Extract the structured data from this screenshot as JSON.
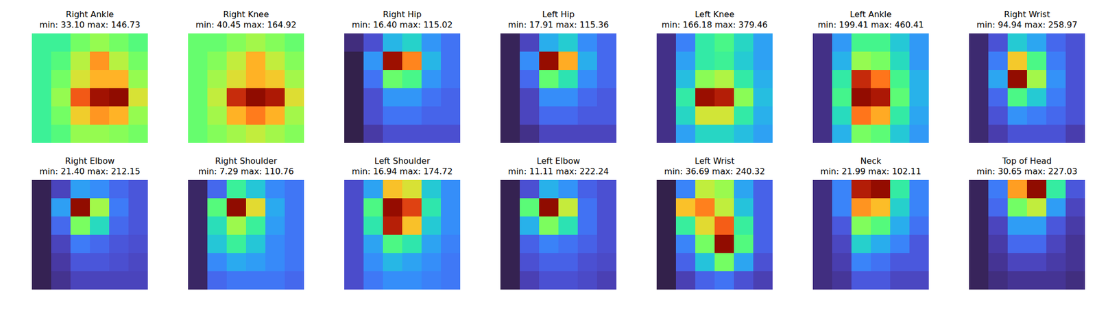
{
  "chart_data": [
    {
      "type": "heatmap",
      "title": "Right Ankle",
      "subtitle": "min: 33.10 max: 146.73",
      "min": 33.1,
      "max": 146.73,
      "tick_labels": false,
      "cells": [
        [
          75,
          75,
          85,
          90,
          85,
          80
        ],
        [
          75,
          80,
          95,
          115,
          95,
          85
        ],
        [
          75,
          85,
          100,
          110,
          110,
          90
        ],
        [
          75,
          90,
          125,
          140,
          146,
          100
        ],
        [
          75,
          85,
          105,
          115,
          110,
          90
        ],
        [
          75,
          80,
          90,
          90,
          88,
          85
        ]
      ]
    },
    {
      "type": "heatmap",
      "title": "Right Knee",
      "subtitle": "min: 40.45 max: 164.92",
      "min": 40.45,
      "max": 164.92,
      "tick_labels": false,
      "cells": [
        [
          95,
          95,
          100,
          105,
          100,
          95
        ],
        [
          95,
          100,
          110,
          125,
          110,
          100
        ],
        [
          95,
          105,
          115,
          125,
          120,
          105
        ],
        [
          95,
          110,
          150,
          164,
          155,
          115
        ],
        [
          95,
          105,
          125,
          135,
          125,
          105
        ],
        [
          95,
          100,
          105,
          110,
          105,
          100
        ]
      ]
    },
    {
      "type": "heatmap",
      "title": "Right Hip",
      "subtitle": "min: 16.40 max: 115.02",
      "min": 16.4,
      "max": 115.02,
      "tick_labels": false,
      "cells": [
        [
          20,
          25,
          40,
          45,
          35,
          30
        ],
        [
          18,
          35,
          110,
          90,
          40,
          30
        ],
        [
          18,
          30,
          60,
          55,
          35,
          30
        ],
        [
          18,
          25,
          35,
          35,
          30,
          28
        ],
        [
          18,
          25,
          30,
          30,
          28,
          28
        ],
        [
          18,
          22,
          25,
          25,
          25,
          25
        ]
      ]
    },
    {
      "type": "heatmap",
      "title": "Left Hip",
      "subtitle": "min: 17.91 max: 115.36",
      "min": 17.91,
      "max": 115.36,
      "tick_labels": false,
      "cells": [
        [
          20,
          25,
          40,
          45,
          35,
          30
        ],
        [
          20,
          35,
          112,
          85,
          40,
          30
        ],
        [
          20,
          30,
          60,
          50,
          35,
          30
        ],
        [
          20,
          25,
          35,
          35,
          30,
          28
        ],
        [
          20,
          25,
          30,
          30,
          28,
          28
        ],
        [
          20,
          22,
          25,
          25,
          25,
          25
        ]
      ]
    },
    {
      "type": "heatmap",
      "title": "Left Knee",
      "subtitle": "min: 166.18 max: 379.46",
      "min": 166.18,
      "max": 379.46,
      "tick_labels": false,
      "cells": [
        [
          175,
          200,
          240,
          250,
          230,
          210
        ],
        [
          175,
          210,
          240,
          245,
          225,
          210
        ],
        [
          175,
          220,
          270,
          280,
          240,
          215
        ],
        [
          175,
          240,
          370,
          360,
          270,
          220
        ],
        [
          175,
          230,
          290,
          290,
          240,
          215
        ],
        [
          175,
          210,
          230,
          230,
          220,
          210
        ]
      ]
    },
    {
      "type": "heatmap",
      "title": "Left Ankle",
      "subtitle": "min: 199.41 max: 460.41",
      "min": 199.41,
      "max": 460.41,
      "tick_labels": false,
      "cells": [
        [
          210,
          250,
          300,
          300,
          270,
          250
        ],
        [
          210,
          260,
          330,
          320,
          280,
          250
        ],
        [
          210,
          290,
          430,
          400,
          300,
          260
        ],
        [
          210,
          300,
          455,
          440,
          310,
          260
        ],
        [
          210,
          280,
          400,
          380,
          290,
          255
        ],
        [
          210,
          260,
          320,
          310,
          270,
          250
        ]
      ]
    },
    {
      "type": "heatmap",
      "title": "Right Wrist",
      "subtitle": "min: 94.94 max: 258.97",
      "min": 94.94,
      "max": 258.97,
      "tick_labels": false,
      "cells": [
        [
          100,
          110,
          140,
          130,
          115,
          110
        ],
        [
          100,
          120,
          200,
          160,
          120,
          110
        ],
        [
          100,
          130,
          255,
          180,
          125,
          110
        ],
        [
          100,
          115,
          160,
          140,
          120,
          110
        ],
        [
          100,
          110,
          125,
          120,
          115,
          110
        ],
        [
          100,
          105,
          110,
          110,
          110,
          105
        ]
      ]
    },
    {
      "type": "heatmap",
      "title": "Right Elbow",
      "subtitle": "min: 21.40 max: 212.15",
      "min": 21.4,
      "max": 212.15,
      "tick_labels": false,
      "cells": [
        [
          25,
          35,
          60,
          55,
          45,
          40
        ],
        [
          25,
          60,
          210,
          120,
          50,
          40
        ],
        [
          25,
          45,
          110,
          80,
          45,
          40
        ],
        [
          25,
          35,
          50,
          45,
          40,
          38
        ],
        [
          25,
          32,
          40,
          40,
          38,
          36
        ],
        [
          25,
          30,
          35,
          35,
          35,
          35
        ]
      ]
    },
    {
      "type": "heatmap",
      "title": "Right Shoulder",
      "subtitle": "min: 7.29 max: 110.76",
      "min": 7.29,
      "max": 110.76,
      "tick_labels": false,
      "cells": [
        [
          10,
          20,
          45,
          35,
          25,
          22
        ],
        [
          10,
          50,
          110,
          70,
          30,
          22
        ],
        [
          10,
          40,
          60,
          45,
          28,
          22
        ],
        [
          10,
          35,
          45,
          35,
          25,
          22
        ],
        [
          10,
          25,
          30,
          28,
          25,
          22
        ],
        [
          10,
          20,
          22,
          22,
          22,
          20
        ]
      ]
    },
    {
      "type": "heatmap",
      "title": "Left Shoulder",
      "subtitle": "min: 16.94 max: 174.72",
      "min": 16.94,
      "max": 174.72,
      "tick_labels": false,
      "cells": [
        [
          30,
          50,
          120,
          110,
          60,
          45
        ],
        [
          30,
          80,
          170,
          150,
          70,
          45
        ],
        [
          30,
          70,
          160,
          120,
          60,
          45
        ],
        [
          30,
          50,
          80,
          70,
          50,
          42
        ],
        [
          30,
          45,
          55,
          50,
          45,
          40
        ],
        [
          30,
          40,
          45,
          45,
          42,
          40
        ]
      ]
    },
    {
      "type": "heatmap",
      "title": "Left Elbow",
      "subtitle": "min: 11.11 max: 222.24",
      "min": 11.11,
      "max": 222.24,
      "tick_labels": false,
      "cells": [
        [
          15,
          30,
          60,
          50,
          35,
          30
        ],
        [
          15,
          100,
          220,
          130,
          40,
          30
        ],
        [
          15,
          60,
          110,
          80,
          40,
          30
        ],
        [
          15,
          35,
          45,
          40,
          35,
          30
        ],
        [
          15,
          30,
          35,
          35,
          30,
          28
        ],
        [
          15,
          25,
          30,
          30,
          28,
          25
        ]
      ]
    },
    {
      "type": "heatmap",
      "title": "Left Wrist",
      "subtitle": "min: 36.69 max: 240.32",
      "min": 36.69,
      "max": 240.32,
      "tick_labels": false,
      "cells": [
        [
          40,
          70,
          150,
          140,
          80,
          60
        ],
        [
          40,
          170,
          190,
          150,
          90,
          60
        ],
        [
          40,
          110,
          160,
          200,
          110,
          60
        ],
        [
          40,
          70,
          130,
          238,
          120,
          60
        ],
        [
          40,
          60,
          90,
          130,
          80,
          55
        ],
        [
          40,
          50,
          60,
          65,
          55,
          50
        ]
      ]
    },
    {
      "type": "heatmap",
      "title": "Neck",
      "subtitle": "min: 21.99 max: 102.11",
      "min": 21.99,
      "max": 102.11,
      "tick_labels": false,
      "cells": [
        [
          25,
          35,
          95,
          100,
          50,
          35
        ],
        [
          25,
          35,
          80,
          75,
          45,
          35
        ],
        [
          25,
          30,
          60,
          55,
          40,
          33
        ],
        [
          25,
          28,
          45,
          40,
          35,
          30
        ],
        [
          25,
          27,
          35,
          33,
          30,
          30
        ],
        [
          25,
          26,
          30,
          30,
          28,
          28
        ]
      ]
    },
    {
      "type": "heatmap",
      "title": "Top of Head",
      "subtitle": "min: 30.65 max: 227.03",
      "min": 30.65,
      "max": 227.03,
      "tick_labels": false,
      "cells": [
        [
          35,
          60,
          170,
          225,
          100,
          50
        ],
        [
          35,
          55,
          120,
          140,
          70,
          45
        ],
        [
          35,
          45,
          70,
          70,
          50,
          42
        ],
        [
          35,
          42,
          55,
          55,
          45,
          40
        ],
        [
          35,
          40,
          45,
          45,
          42,
          40
        ],
        [
          35,
          38,
          40,
          40,
          40,
          38
        ]
      ]
    }
  ]
}
